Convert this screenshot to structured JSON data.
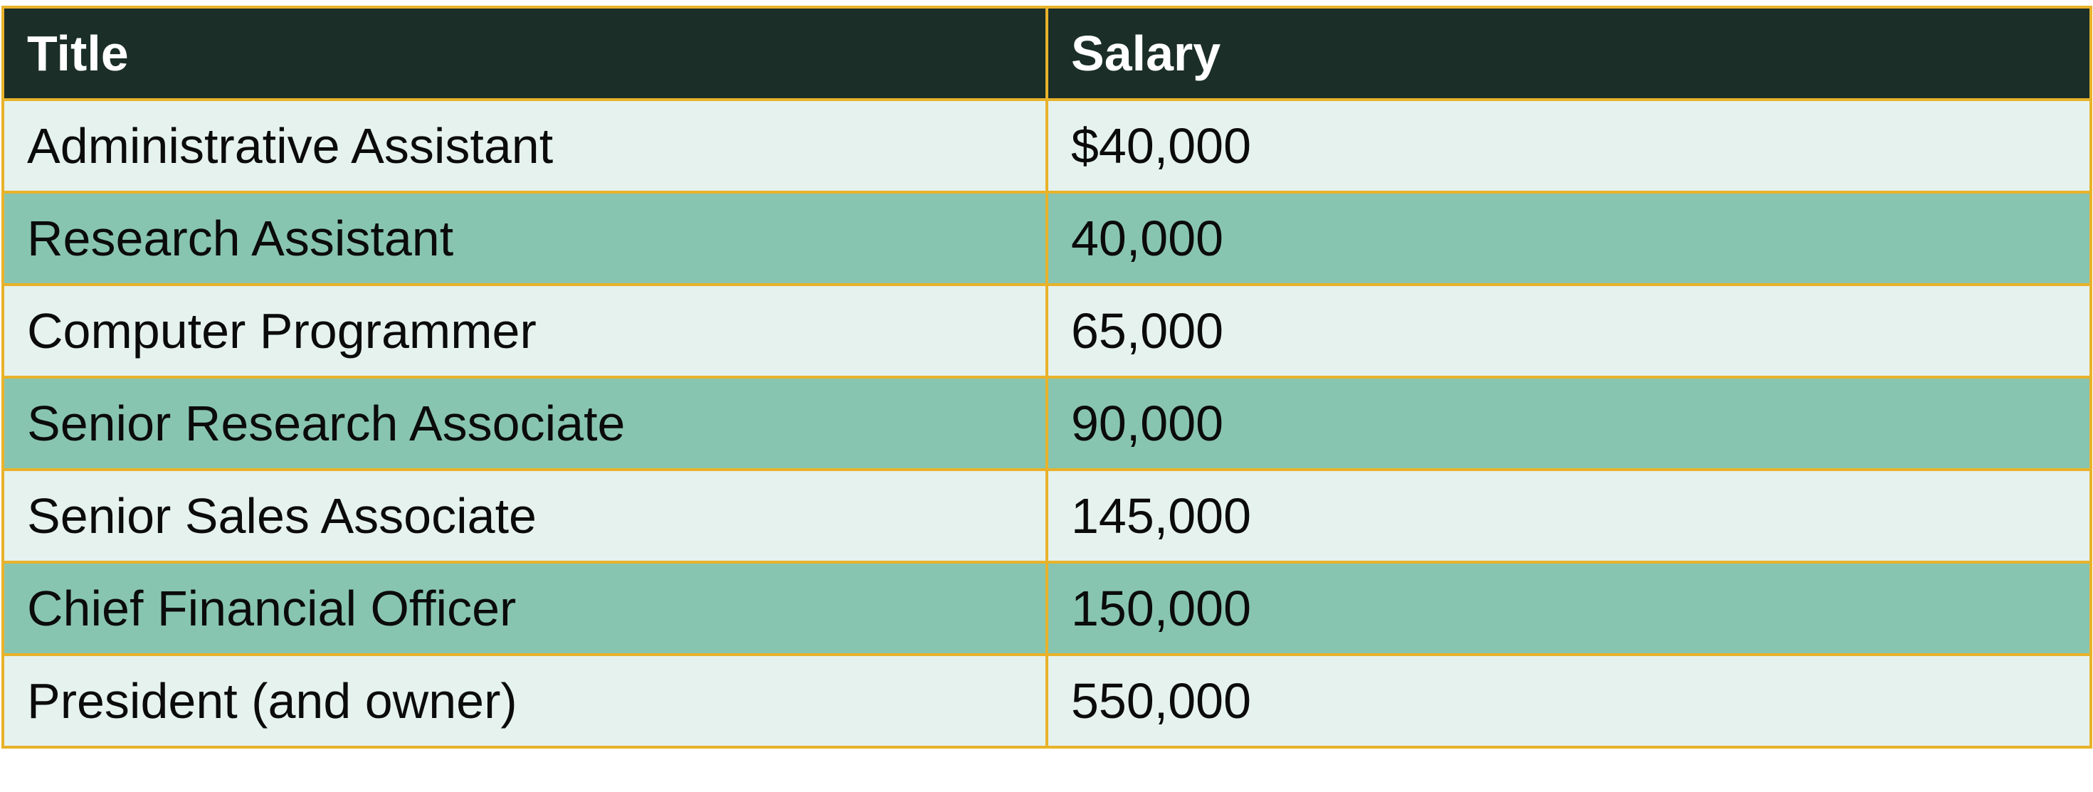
{
  "table": {
    "headers": [
      "Title",
      "Salary"
    ],
    "rows": [
      {
        "title": "Administrative Assistant",
        "salary": "$40,000"
      },
      {
        "title": "Research Assistant",
        "salary": "40,000"
      },
      {
        "title": "Computer Programmer",
        "salary": "65,000"
      },
      {
        "title": "Senior Research Associate",
        "salary": "90,000"
      },
      {
        "title": "Senior Sales Associate",
        "salary": "145,000"
      },
      {
        "title": "Chief Financial Officer",
        "salary": "150,000"
      },
      {
        "title": "President (and owner)",
        "salary": "550,000"
      }
    ]
  },
  "colors": {
    "header_background": "#1b2e28",
    "header_text": "#ffffff",
    "row_light": "#e6f2ee",
    "row_dark": "#88c5b0",
    "border": "#e8b22a"
  }
}
